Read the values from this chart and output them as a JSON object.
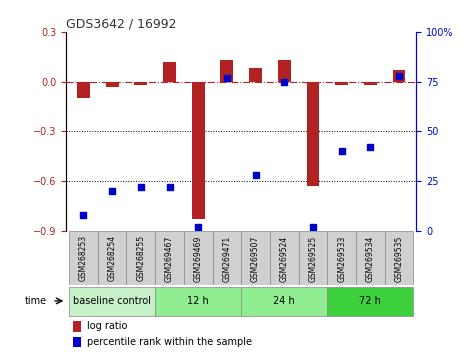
{
  "title": "GDS3642 / 16992",
  "samples": [
    "GSM268253",
    "GSM268254",
    "GSM268255",
    "GSM269467",
    "GSM269469",
    "GSM269471",
    "GSM269507",
    "GSM269524",
    "GSM269525",
    "GSM269533",
    "GSM269534",
    "GSM269535"
  ],
  "log_ratio": [
    -0.1,
    -0.03,
    -0.02,
    0.12,
    -0.83,
    0.13,
    0.08,
    0.13,
    -0.63,
    -0.02,
    -0.02,
    0.07
  ],
  "percentile": [
    8,
    20,
    22,
    22,
    2,
    77,
    28,
    75,
    2,
    40,
    42,
    78
  ],
  "ylim_left": [
    -0.9,
    0.3
  ],
  "ylim_right": [
    0,
    100
  ],
  "yticks_left": [
    -0.9,
    -0.6,
    -0.3,
    0.0,
    0.3
  ],
  "yticks_right": [
    0,
    25,
    50,
    75,
    100
  ],
  "bar_color": "#b22222",
  "dot_color": "#0000cd",
  "zeroline_color": "#b22222",
  "gridline_color": "#000000",
  "groups": [
    {
      "label": "baseline control",
      "start": 0,
      "end": 3,
      "color": "#c8f0c8"
    },
    {
      "label": "12 h",
      "start": 3,
      "end": 6,
      "color": "#90ee90"
    },
    {
      "label": "24 h",
      "start": 6,
      "end": 9,
      "color": "#90ee90"
    },
    {
      "label": "72 h",
      "start": 9,
      "end": 12,
      "color": "#3dd13d"
    }
  ],
  "bar_width": 0.45,
  "dot_size": 22,
  "legend_log_ratio": "log ratio",
  "legend_percentile": "percentile rank within the sample",
  "time_label": "time",
  "fig_bg": "#ffffff",
  "plot_bg": "#ffffff",
  "sample_box_color": "#d0d0d0",
  "sample_box_edge": "#888888"
}
